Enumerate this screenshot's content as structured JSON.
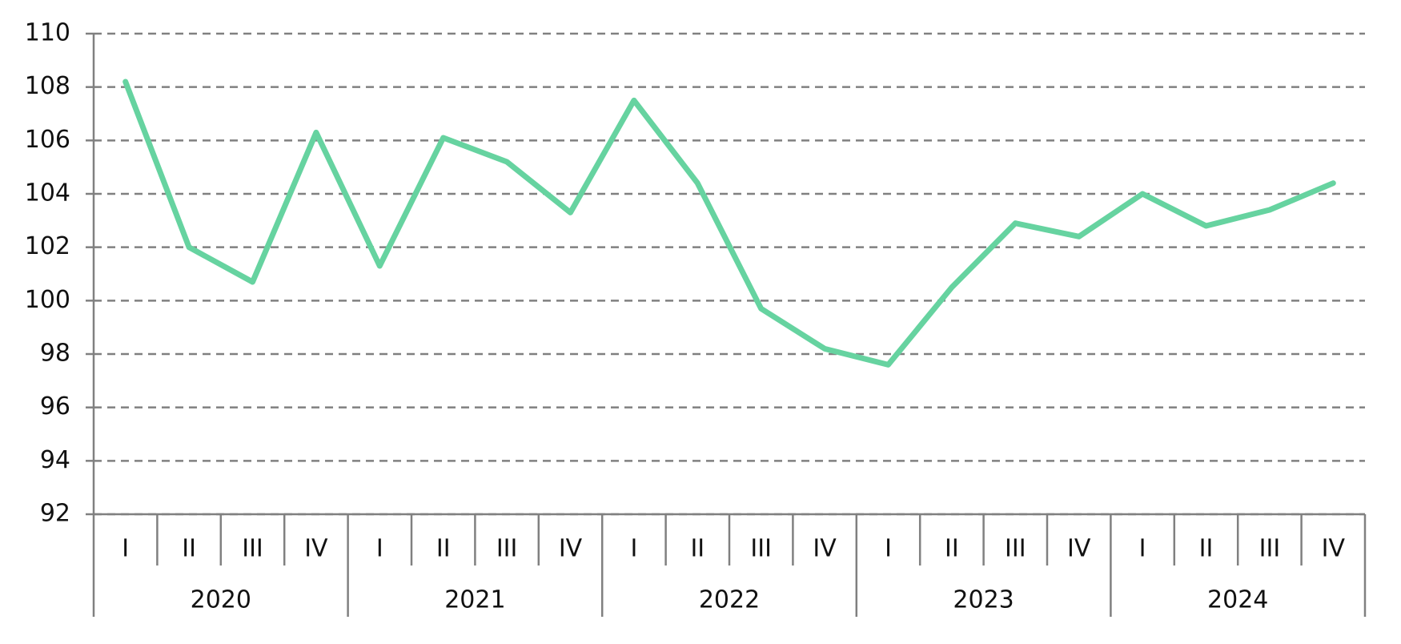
{
  "chart_data": {
    "type": "line",
    "categories": [
      "I",
      "II",
      "III",
      "IV",
      "I",
      "II",
      "III",
      "IV",
      "I",
      "II",
      "III",
      "IV",
      "I",
      "II",
      "III",
      "IV",
      "I",
      "II",
      "III",
      "IV"
    ],
    "category_groups": [
      "2020",
      "2021",
      "2022",
      "2023",
      "2024"
    ],
    "series": [
      {
        "color": "#66d3a0",
        "values": [
          108.2,
          102.0,
          100.7,
          106.3,
          101.3,
          106.1,
          105.2,
          103.3,
          107.5,
          104.4,
          99.7,
          98.2,
          97.6,
          100.5,
          102.9,
          102.4,
          104.0,
          102.8,
          103.4,
          104.4
        ]
      }
    ],
    "ylim": [
      92,
      110
    ],
    "yticks": [
      92,
      94,
      96,
      98,
      100,
      102,
      104,
      106,
      108,
      110
    ],
    "grid": true
  }
}
